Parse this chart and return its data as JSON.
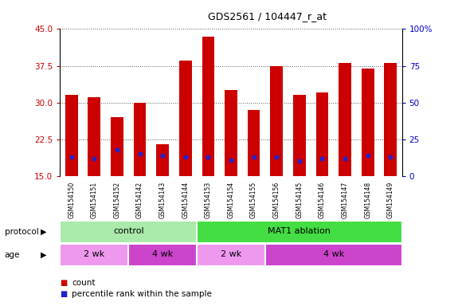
{
  "title": "GDS2561 / 104447_r_at",
  "samples": [
    "GSM154150",
    "GSM154151",
    "GSM154152",
    "GSM154142",
    "GSM154143",
    "GSM154144",
    "GSM154153",
    "GSM154154",
    "GSM154155",
    "GSM154156",
    "GSM154145",
    "GSM154146",
    "GSM154147",
    "GSM154148",
    "GSM154149"
  ],
  "count_values": [
    31.5,
    31.0,
    27.0,
    30.0,
    21.5,
    38.5,
    43.5,
    32.5,
    28.5,
    37.5,
    31.5,
    32.0,
    38.0,
    37.0,
    38.0
  ],
  "blue_dot_pct": [
    13,
    12,
    18,
    15,
    14,
    13,
    13,
    11,
    13,
    13,
    10,
    12,
    12,
    14,
    13
  ],
  "ylim_left": [
    15,
    45
  ],
  "ylim_right": [
    0,
    100
  ],
  "yticks_left": [
    15,
    22.5,
    30,
    37.5,
    45
  ],
  "yticks_right": [
    0,
    25,
    50,
    75,
    100
  ],
  "bar_color": "#cc0000",
  "dot_color": "#2222cc",
  "protocol_groups": [
    {
      "label": "control",
      "start": 0,
      "end": 6,
      "color": "#aaeaaa"
    },
    {
      "label": "MAT1 ablation",
      "start": 6,
      "end": 15,
      "color": "#44dd44"
    }
  ],
  "age_groups": [
    {
      "label": "2 wk",
      "start": 0,
      "end": 3,
      "color": "#ee99ee"
    },
    {
      "label": "4 wk",
      "start": 3,
      "end": 6,
      "color": "#cc44cc"
    },
    {
      "label": "2 wk",
      "start": 6,
      "end": 9,
      "color": "#ee99ee"
    },
    {
      "label": "4 wk",
      "start": 9,
      "end": 15,
      "color": "#cc44cc"
    }
  ],
  "label_bg": "#c8c8c8",
  "plot_bg": "#ffffff",
  "bar_width": 0.55
}
